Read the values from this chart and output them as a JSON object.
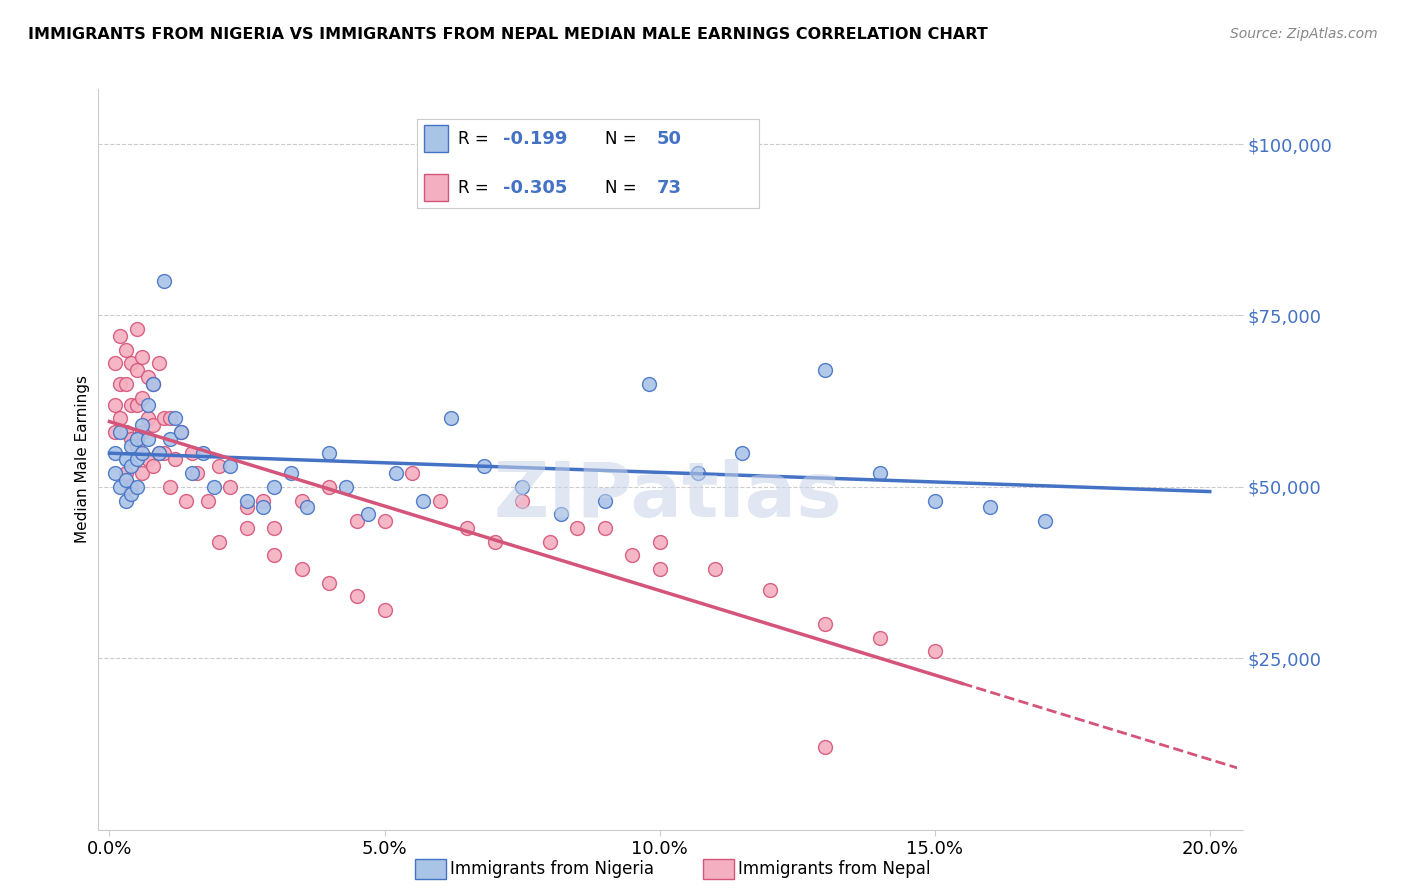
{
  "title": "IMMIGRANTS FROM NIGERIA VS IMMIGRANTS FROM NEPAL MEDIAN MALE EARNINGS CORRELATION CHART",
  "source": "Source: ZipAtlas.com",
  "xlabel_ticks": [
    "0.0%",
    "5.0%",
    "10.0%",
    "15.0%",
    "20.0%"
  ],
  "xlabel_tick_vals": [
    0.0,
    0.05,
    0.1,
    0.15,
    0.2
  ],
  "ylabel": "Median Male Earnings",
  "ylabel_ticks": [
    0,
    25000,
    50000,
    75000,
    100000
  ],
  "ylabel_tick_labels": [
    "",
    "$25,000",
    "$50,000",
    "$75,000",
    "$100,000"
  ],
  "xlim": [
    -0.002,
    0.205
  ],
  "ylim": [
    0,
    108000
  ],
  "nigeria_R": -0.199,
  "nigeria_N": 50,
  "nepal_R": -0.305,
  "nepal_N": 73,
  "nigeria_color": "#aac4e8",
  "nepal_color": "#f4afc0",
  "nigeria_line_color": "#4472c4",
  "nepal_line_color": "#d4547a",
  "watermark": "ZIPatlas",
  "nigeria_scatter_x": [
    0.001,
    0.001,
    0.002,
    0.002,
    0.003,
    0.003,
    0.003,
    0.004,
    0.004,
    0.004,
    0.005,
    0.005,
    0.005,
    0.006,
    0.006,
    0.007,
    0.007,
    0.008,
    0.009,
    0.01,
    0.011,
    0.012,
    0.013,
    0.015,
    0.017,
    0.019,
    0.022,
    0.025,
    0.028,
    0.03,
    0.033,
    0.036,
    0.04,
    0.043,
    0.047,
    0.052,
    0.057,
    0.062,
    0.068,
    0.075,
    0.082,
    0.09,
    0.098,
    0.107,
    0.115,
    0.13,
    0.14,
    0.15,
    0.16,
    0.17
  ],
  "nigeria_scatter_y": [
    55000,
    52000,
    58000,
    50000,
    54000,
    51000,
    48000,
    56000,
    53000,
    49000,
    57000,
    54000,
    50000,
    59000,
    55000,
    62000,
    57000,
    65000,
    55000,
    80000,
    57000,
    60000,
    58000,
    52000,
    55000,
    50000,
    53000,
    48000,
    47000,
    50000,
    52000,
    47000,
    55000,
    50000,
    46000,
    52000,
    48000,
    60000,
    53000,
    50000,
    46000,
    48000,
    65000,
    52000,
    55000,
    67000,
    52000,
    48000,
    47000,
    45000
  ],
  "nepal_scatter_x": [
    0.001,
    0.001,
    0.001,
    0.002,
    0.002,
    0.002,
    0.003,
    0.003,
    0.003,
    0.003,
    0.004,
    0.004,
    0.004,
    0.004,
    0.005,
    0.005,
    0.005,
    0.005,
    0.006,
    0.006,
    0.006,
    0.006,
    0.007,
    0.007,
    0.007,
    0.008,
    0.008,
    0.008,
    0.009,
    0.009,
    0.01,
    0.01,
    0.011,
    0.011,
    0.012,
    0.013,
    0.014,
    0.015,
    0.016,
    0.018,
    0.02,
    0.022,
    0.025,
    0.028,
    0.03,
    0.035,
    0.04,
    0.045,
    0.05,
    0.055,
    0.06,
    0.065,
    0.07,
    0.075,
    0.08,
    0.085,
    0.09,
    0.095,
    0.1,
    0.11,
    0.12,
    0.13,
    0.14,
    0.15,
    0.02,
    0.025,
    0.03,
    0.035,
    0.04,
    0.045,
    0.05,
    0.1,
    0.13
  ],
  "nepal_scatter_y": [
    62000,
    58000,
    68000,
    65000,
    72000,
    60000,
    70000,
    65000,
    58000,
    52000,
    68000,
    62000,
    57000,
    50000,
    73000,
    67000,
    62000,
    56000,
    69000,
    63000,
    58000,
    52000,
    66000,
    60000,
    54000,
    65000,
    59000,
    53000,
    68000,
    55000,
    60000,
    55000,
    60000,
    50000,
    54000,
    58000,
    48000,
    55000,
    52000,
    48000,
    53000,
    50000,
    47000,
    48000,
    44000,
    48000,
    50000,
    45000,
    45000,
    52000,
    48000,
    44000,
    42000,
    48000,
    42000,
    44000,
    44000,
    40000,
    42000,
    38000,
    35000,
    30000,
    28000,
    26000,
    42000,
    44000,
    40000,
    38000,
    36000,
    34000,
    32000,
    38000,
    12000
  ]
}
